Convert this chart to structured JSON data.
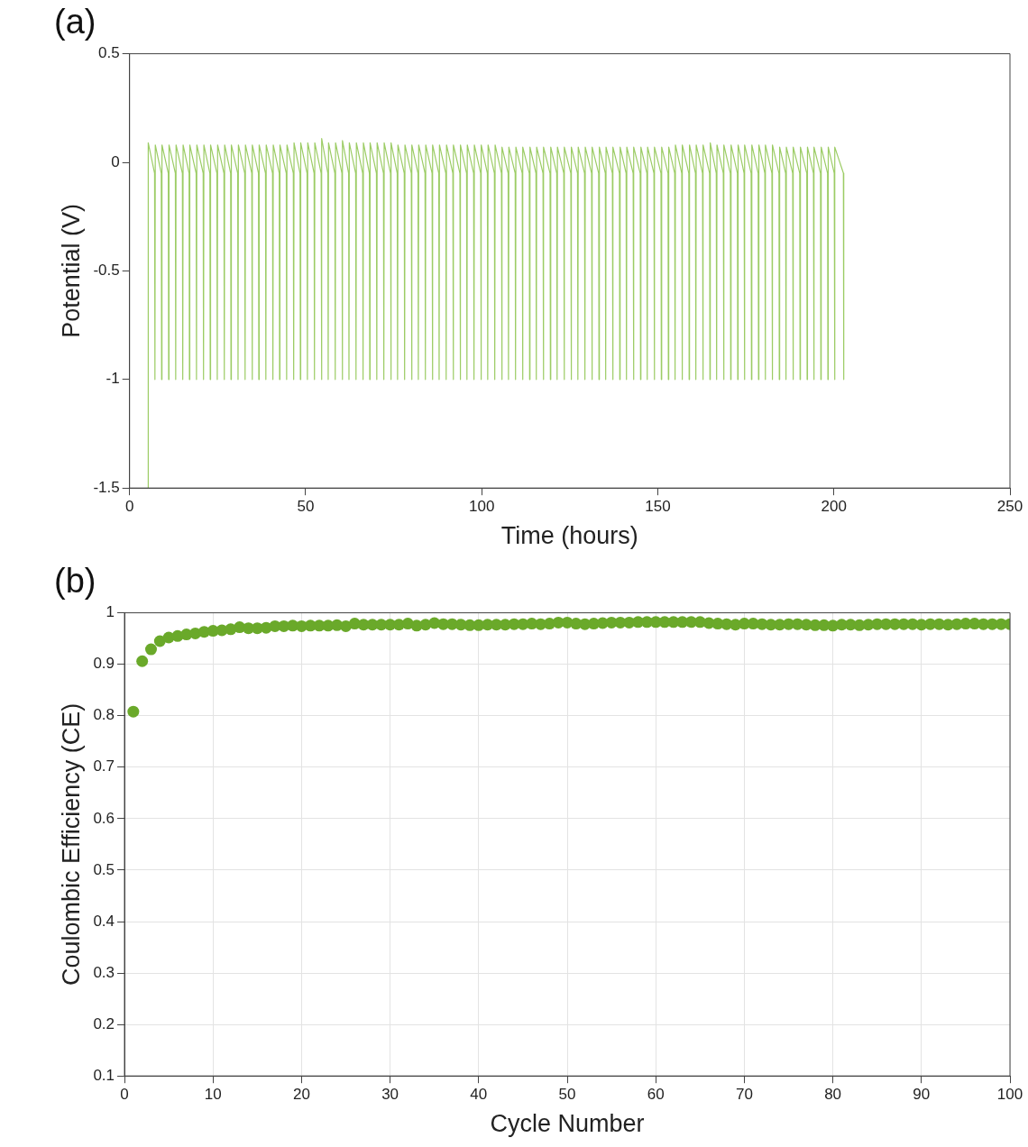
{
  "chart_data": [
    {
      "type": "line",
      "title": "(a)",
      "xlabel": "Time (hours)",
      "ylabel": "Potential (V)",
      "color": "#9ccc65",
      "grid": false,
      "legend": false,
      "xlim": [
        0,
        250
      ],
      "xticks": [
        0,
        50,
        100,
        150,
        200,
        250
      ],
      "ylim": [
        -1.5,
        0.5
      ],
      "yticks": [
        -1.5,
        -1,
        -0.5,
        0,
        0.5
      ],
      "x": [
        5.2,
        5.3,
        7.1,
        7.2,
        7.3,
        9.0,
        9.1,
        9.2,
        11.0,
        11.1,
        11.2,
        13.0,
        13.1,
        13.2,
        15.0,
        15.1,
        15.2,
        16.9,
        17.0,
        17.1,
        18.9,
        19.0,
        19.1,
        20.9,
        21.0,
        21.1,
        22.8,
        22.9,
        23.0,
        24.8,
        24.9,
        25.0,
        26.8,
        26.9,
        27.0,
        28.7,
        28.8,
        28.9,
        30.7,
        30.8,
        30.9,
        32.7,
        32.8,
        32.9,
        34.7,
        34.8,
        34.9,
        36.6,
        36.7,
        36.8,
        38.6,
        38.7,
        38.8,
        40.6,
        40.7,
        40.8,
        42.5,
        42.6,
        42.7,
        44.5,
        44.6,
        44.7,
        46.5,
        46.6,
        46.7,
        48.4,
        48.5,
        48.6,
        50.4,
        50.5,
        50.6,
        52.4,
        52.5,
        52.6,
        54.4,
        54.5,
        54.6,
        56.3,
        56.4,
        56.5,
        58.3,
        58.4,
        58.5,
        60.3,
        60.4,
        60.5,
        62.2,
        62.3,
        62.4,
        64.2,
        64.3,
        64.4,
        66.2,
        66.3,
        66.4,
        68.1,
        68.2,
        68.3,
        70.1,
        70.2,
        70.3,
        72.1,
        72.2,
        72.3,
        74.1,
        74.2,
        74.3,
        76.0,
        76.1,
        76.2,
        78.0,
        78.1,
        78.2,
        80.0,
        80.1,
        80.2,
        81.9,
        82.0,
        82.1,
        83.9,
        84.0,
        84.1,
        85.9,
        86.0,
        86.1,
        87.8,
        87.9,
        88.0,
        89.8,
        89.9,
        90.0,
        91.8,
        91.9,
        92.0,
        93.8,
        93.9,
        94.0,
        95.7,
        95.8,
        95.9,
        97.7,
        97.8,
        97.9,
        99.7,
        99.8,
        99.9,
        101.6,
        101.7,
        101.8,
        103.6,
        103.7,
        103.8,
        105.6,
        105.7,
        105.8,
        107.5,
        107.6,
        107.7,
        109.5,
        109.6,
        109.7,
        111.5,
        111.6,
        111.7,
        113.5,
        113.6,
        113.7,
        115.4,
        115.5,
        115.6,
        117.4,
        117.5,
        117.6,
        119.4,
        119.5,
        119.6,
        121.3,
        121.4,
        121.5,
        123.3,
        123.4,
        123.5,
        125.3,
        125.4,
        125.5,
        127.2,
        127.3,
        127.4,
        129.2,
        129.3,
        129.4,
        131.2,
        131.3,
        131.4,
        133.2,
        133.3,
        133.4,
        135.1,
        135.2,
        135.3,
        137.1,
        137.2,
        137.3,
        139.1,
        139.2,
        139.3,
        141.0,
        141.1,
        141.2,
        143.0,
        143.1,
        143.2,
        145.0,
        145.1,
        145.2,
        146.9,
        147.0,
        147.1,
        148.9,
        149.0,
        149.1,
        150.9,
        151.0,
        151.1,
        152.9,
        153.0,
        153.1,
        154.8,
        154.9,
        155.0,
        156.8,
        156.9,
        157.0,
        158.8,
        158.9,
        159.0,
        160.7,
        160.8,
        160.9,
        162.7,
        162.8,
        162.9,
        164.7,
        164.8,
        164.9,
        166.6,
        166.7,
        166.8,
        168.6,
        168.7,
        168.8,
        170.6,
        170.7,
        170.8,
        172.6,
        172.7,
        172.8,
        174.5,
        174.6,
        174.7,
        176.5,
        176.6,
        176.7,
        178.5,
        178.6,
        178.7,
        180.4,
        180.5,
        180.6,
        182.4,
        182.5,
        182.6,
        184.4,
        184.5,
        184.6,
        186.3,
        186.4,
        186.5,
        188.3,
        188.4,
        188.5,
        190.3,
        190.4,
        190.5,
        192.3,
        192.4,
        192.5,
        194.2,
        194.3,
        194.4,
        196.2,
        196.3,
        196.4,
        198.2,
        198.3,
        198.4,
        200.1,
        200.2,
        200.3,
        202.7,
        202.8
      ],
      "values": [
        -1.5,
        0.09,
        -0.05,
        -1,
        0.08,
        -0.05,
        -1,
        0.08,
        -0.05,
        -1,
        0.08,
        -0.05,
        -1,
        0.08,
        -0.05,
        -1,
        0.08,
        -0.05,
        -1,
        0.08,
        -0.05,
        -1,
        0.08,
        -0.05,
        -1,
        0.08,
        -0.05,
        -1,
        0.08,
        -0.05,
        -1,
        0.08,
        -0.05,
        -1,
        0.08,
        -0.05,
        -1,
        0.08,
        -0.05,
        -1,
        0.08,
        -0.05,
        -1,
        0.08,
        -0.05,
        -1,
        0.08,
        -0.05,
        -1,
        0.08,
        -0.05,
        -1,
        0.08,
        -0.05,
        -1,
        0.08,
        -0.05,
        -1,
        0.08,
        -0.05,
        -1,
        0.08,
        -0.05,
        -1,
        0.09,
        -0.05,
        -1,
        0.09,
        -0.05,
        -1,
        0.09,
        -0.05,
        -1,
        0.09,
        -0.05,
        -1,
        0.11,
        -0.05,
        -1,
        0.09,
        -0.05,
        -1,
        0.09,
        -0.05,
        -1,
        0.1,
        -0.05,
        -1,
        0.09,
        -0.05,
        -1,
        0.09,
        -0.05,
        -1,
        0.09,
        -0.05,
        -1,
        0.09,
        -0.05,
        -1,
        0.09,
        -0.05,
        -1,
        0.09,
        -0.05,
        -1,
        0.09,
        -0.05,
        -1,
        0.08,
        -0.05,
        -1,
        0.08,
        -0.05,
        -1,
        0.08,
        -0.05,
        -1,
        0.08,
        -0.05,
        -1,
        0.08,
        -0.05,
        -1,
        0.08,
        -0.05,
        -1,
        0.08,
        -0.05,
        -1,
        0.08,
        -0.05,
        -1,
        0.08,
        -0.05,
        -1,
        0.08,
        -0.05,
        -1,
        0.08,
        -0.05,
        -1,
        0.08,
        -0.05,
        -1,
        0.08,
        -0.05,
        -1,
        0.08,
        -0.05,
        -1,
        0.08,
        -0.05,
        -1,
        0.07,
        -0.05,
        -1,
        0.07,
        -0.05,
        -1,
        0.07,
        -0.05,
        -1,
        0.07,
        -0.05,
        -1,
        0.07,
        -0.05,
        -1,
        0.07,
        -0.05,
        -1,
        0.07,
        -0.05,
        -1,
        0.07,
        -0.05,
        -1,
        0.07,
        -0.05,
        -1,
        0.07,
        -0.05,
        -1,
        0.07,
        -0.05,
        -1,
        0.07,
        -0.05,
        -1,
        0.07,
        -0.05,
        -1,
        0.07,
        -0.05,
        -1,
        0.07,
        -0.05,
        -1,
        0.07,
        -0.05,
        -1,
        0.07,
        -0.05,
        -1,
        0.07,
        -0.05,
        -1,
        0.07,
        -0.05,
        -1,
        0.07,
        -0.05,
        -1,
        0.07,
        -0.05,
        -1,
        0.07,
        -0.05,
        -1,
        0.07,
        -0.05,
        -1,
        0.07,
        -0.05,
        -1,
        0.07,
        -0.05,
        -1,
        0.08,
        -0.05,
        -1,
        0.08,
        -0.05,
        -1,
        0.08,
        -0.05,
        -1,
        0.08,
        -0.05,
        -1,
        0.08,
        -0.05,
        -1,
        0.09,
        -0.05,
        -1,
        0.08,
        -0.05,
        -1,
        0.08,
        -0.05,
        -1,
        0.08,
        -0.05,
        -1,
        0.08,
        -0.05,
        -1,
        0.08,
        -0.05,
        -1,
        0.08,
        -0.05,
        -1,
        0.08,
        -0.05,
        -1,
        0.08,
        -0.05,
        -1,
        0.08,
        -0.05,
        -1,
        0.07,
        -0.05,
        -1,
        0.07,
        -0.05,
        -1,
        0.07,
        -0.05,
        -1,
        0.07,
        -0.05,
        -1,
        0.07,
        -0.05,
        -1,
        0.07,
        -0.05,
        -1,
        0.07,
        -0.05,
        -1,
        0.07,
        -0.05,
        -1,
        0.07,
        -0.05,
        -1
      ]
    },
    {
      "type": "scatter",
      "title": "(b)",
      "xlabel": "Cycle Number",
      "ylabel": "Coulombic Efficiency (CE)",
      "color": "#6aa92a",
      "grid": true,
      "legend": false,
      "marker": "circle",
      "xlim": [
        0,
        100
      ],
      "xticks": [
        0,
        10,
        20,
        30,
        40,
        50,
        60,
        70,
        80,
        90,
        100
      ],
      "ylim": [
        0.1,
        1
      ],
      "yticks": [
        0.1,
        0.2,
        0.3,
        0.4,
        0.5,
        0.6,
        0.7,
        0.8,
        0.9,
        1
      ],
      "x": [
        1,
        2,
        3,
        4,
        5,
        6,
        7,
        8,
        9,
        10,
        11,
        12,
        13,
        14,
        15,
        16,
        17,
        18,
        19,
        20,
        21,
        22,
        23,
        24,
        25,
        26,
        27,
        28,
        29,
        30,
        31,
        32,
        33,
        34,
        35,
        36,
        37,
        38,
        39,
        40,
        41,
        42,
        43,
        44,
        45,
        46,
        47,
        48,
        49,
        50,
        51,
        52,
        53,
        54,
        55,
        56,
        57,
        58,
        59,
        60,
        61,
        62,
        63,
        64,
        65,
        66,
        67,
        68,
        69,
        70,
        71,
        72,
        73,
        74,
        75,
        76,
        77,
        78,
        79,
        80,
        81,
        82,
        83,
        84,
        85,
        86,
        87,
        88,
        89,
        90,
        91,
        92,
        93,
        94,
        95,
        96,
        97,
        98,
        99,
        100
      ],
      "values": [
        0.808,
        0.906,
        0.929,
        0.945,
        0.952,
        0.955,
        0.958,
        0.96,
        0.963,
        0.965,
        0.966,
        0.968,
        0.972,
        0.97,
        0.97,
        0.971,
        0.974,
        0.974,
        0.975,
        0.974,
        0.975,
        0.975,
        0.975,
        0.976,
        0.974,
        0.979,
        0.977,
        0.977,
        0.977,
        0.977,
        0.977,
        0.979,
        0.975,
        0.977,
        0.98,
        0.978,
        0.978,
        0.977,
        0.976,
        0.976,
        0.977,
        0.977,
        0.977,
        0.978,
        0.978,
        0.979,
        0.978,
        0.979,
        0.981,
        0.981,
        0.979,
        0.978,
        0.979,
        0.98,
        0.981,
        0.981,
        0.981,
        0.982,
        0.982,
        0.982,
        0.982,
        0.982,
        0.982,
        0.982,
        0.982,
        0.98,
        0.979,
        0.978,
        0.977,
        0.979,
        0.979,
        0.978,
        0.977,
        0.977,
        0.978,
        0.978,
        0.977,
        0.976,
        0.976,
        0.975,
        0.977,
        0.977,
        0.976,
        0.977,
        0.978,
        0.978,
        0.978,
        0.978,
        0.978,
        0.977,
        0.978,
        0.978,
        0.977,
        0.978,
        0.979,
        0.979,
        0.978,
        0.978,
        0.978,
        0.978
      ]
    }
  ]
}
